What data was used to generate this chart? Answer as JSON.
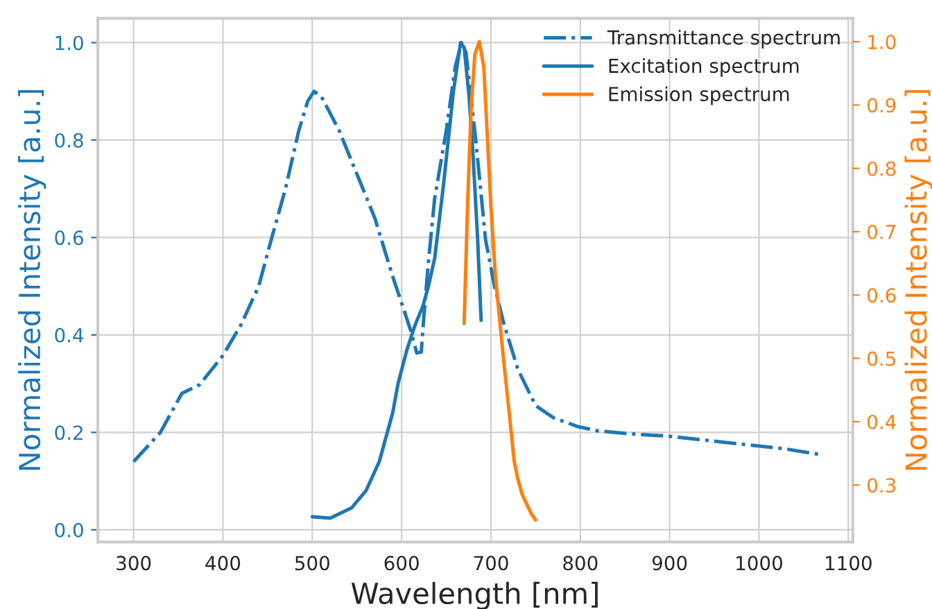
{
  "chart_data": {
    "type": "line",
    "xlabel": "Wavelength [nm]",
    "ylabel": "Normalized Intensity [a.u.]",
    "y2label": "Normalized Intensity [a.u.]",
    "xlim": [
      260,
      1105
    ],
    "xticks": [
      300,
      400,
      500,
      600,
      700,
      800,
      900,
      1000,
      1100
    ],
    "ylim": [
      -0.025,
      1.05
    ],
    "yticks": [
      {
        "value": 0,
        "label": "0.0"
      },
      0.2,
      0.4,
      0.6,
      0.8,
      {
        "value": 1,
        "label": "1.0"
      }
    ],
    "y2lim": [
      0.21,
      1.037
    ],
    "y2ticks": [
      0.3,
      0.4,
      0.5,
      0.6,
      0.7,
      0.8,
      0.9,
      {
        "value": 1,
        "label": "1.0"
      }
    ],
    "grid": true,
    "legend": "top right",
    "series": [
      {
        "name": "Transmittance spectrum",
        "color": "#1f77b4",
        "line_style": "dashdot",
        "x": [
          300,
          310,
          330,
          354,
          374,
          400,
          420,
          440,
          454,
          470,
          485,
          495,
          502,
          510,
          530,
          550,
          570,
          590,
          601,
          610,
          617,
          622,
          625,
          630,
          637,
          650,
          660,
          667,
          672,
          683,
          694,
          704,
          714,
          730,
          750,
          770,
          797,
          820,
          850,
          880,
          895,
          930,
          960,
          1000,
          1030,
          1050,
          1064,
          1070
        ],
        "values": [
          0.14,
          0.16,
          0.2,
          0.28,
          0.298,
          0.358,
          0.42,
          0.5,
          0.595,
          0.7,
          0.82,
          0.88,
          0.9,
          0.89,
          0.82,
          0.73,
          0.64,
          0.52,
          0.46,
          0.41,
          0.363,
          0.365,
          0.44,
          0.55,
          0.68,
          0.82,
          0.95,
          1.0,
          0.98,
          0.8,
          0.595,
          0.5,
          0.426,
          0.33,
          0.255,
          0.23,
          0.212,
          0.203,
          0.198,
          0.194,
          0.193,
          0.186,
          0.18,
          0.172,
          0.166,
          0.16,
          0.156,
          0.155
        ]
      },
      {
        "name": "Excitation spectrum",
        "color": "#1f77b4",
        "line_style": "solid",
        "x": [
          500,
          520,
          544,
          560,
          575,
          590,
          596,
          606,
          615,
          624,
          630,
          637,
          647,
          658,
          666,
          670,
          675,
          679,
          685,
          689
        ],
        "values": [
          0.027,
          0.024,
          0.045,
          0.08,
          0.14,
          0.24,
          0.3,
          0.37,
          0.42,
          0.46,
          0.5,
          0.557,
          0.71,
          0.9,
          1.0,
          0.99,
          0.9,
          0.8,
          0.6,
          0.43
        ]
      },
      {
        "name": "Emission spectrum",
        "color": "#ff7f0e",
        "line_style": "solid",
        "axis": "y2",
        "x": [
          670,
          674,
          678,
          682,
          687,
          692,
          696,
          700,
          705,
          710,
          714,
          720,
          726,
          730,
          735,
          740,
          745,
          750
        ],
        "values": [
          0.555,
          0.75,
          0.9,
          0.98,
          1.0,
          0.96,
          0.85,
          0.74,
          0.63,
          0.557,
          0.5,
          0.42,
          0.338,
          0.31,
          0.285,
          0.27,
          0.255,
          0.245
        ]
      }
    ]
  }
}
